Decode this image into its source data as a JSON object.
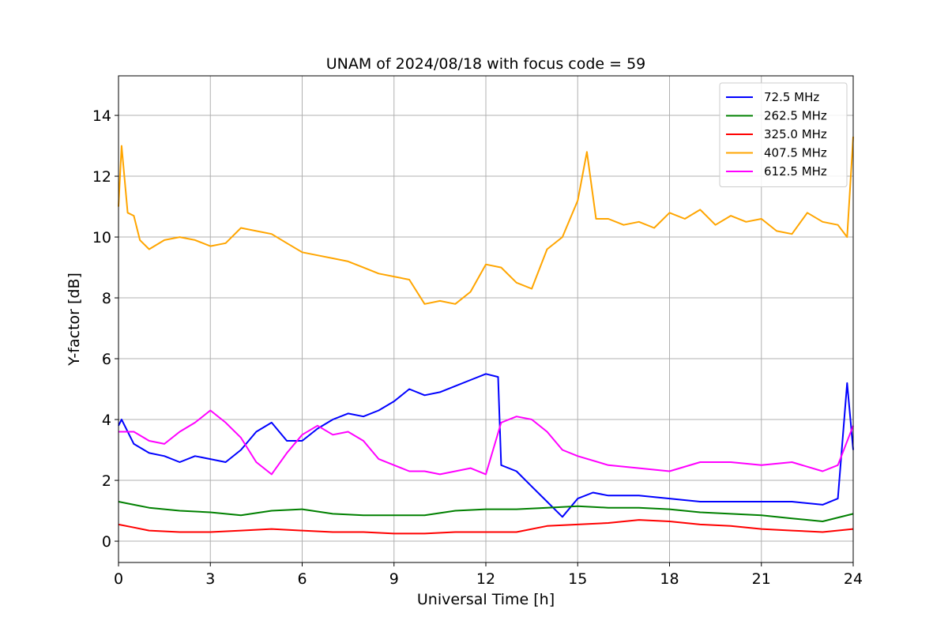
{
  "chart_data": {
    "type": "line",
    "title": "UNAM of 2024/08/18 with focus code = 59",
    "xlabel": "Universal Time [h]",
    "ylabel": "Y-factor [dB]",
    "xlim": [
      0,
      24
    ],
    "ylim": [
      -0.7,
      15.3
    ],
    "xticks": [
      0,
      3,
      6,
      9,
      12,
      15,
      18,
      21,
      24
    ],
    "yticks": [
      0,
      2,
      4,
      6,
      8,
      10,
      12,
      14
    ],
    "grid": true,
    "legend_position": "top-right",
    "series": [
      {
        "name": " 72.5 MHz",
        "color": "#0000ff",
        "x": [
          0,
          0.1,
          0.5,
          1,
          1.5,
          2,
          2.5,
          3,
          3.5,
          4,
          4.5,
          5,
          5.5,
          6,
          6.5,
          7,
          7.5,
          8,
          8.5,
          9,
          9.5,
          10,
          10.5,
          11,
          11.5,
          12,
          12.4,
          12.5,
          13,
          13.5,
          14,
          14.5,
          15,
          15.5,
          16,
          17,
          18,
          19,
          20,
          21,
          22,
          23,
          23.5,
          23.8,
          24
        ],
        "y": [
          3.8,
          4.0,
          3.2,
          2.9,
          2.8,
          2.6,
          2.8,
          2.7,
          2.6,
          3.0,
          3.6,
          3.9,
          3.3,
          3.3,
          3.7,
          4.0,
          4.2,
          4.1,
          4.3,
          4.6,
          5.0,
          4.8,
          4.9,
          5.1,
          5.3,
          5.5,
          5.4,
          2.5,
          2.3,
          1.8,
          1.3,
          0.8,
          1.4,
          1.6,
          1.5,
          1.5,
          1.4,
          1.3,
          1.3,
          1.3,
          1.3,
          1.2,
          1.4,
          5.2,
          3.0
        ]
      },
      {
        "name": " 262.5 MHz",
        "color": "#008000",
        "x": [
          0,
          0.5,
          1,
          2,
          3,
          4,
          5,
          6,
          7,
          8,
          9,
          10,
          11,
          12,
          13,
          14,
          15,
          16,
          17,
          18,
          19,
          20,
          21,
          22,
          23,
          24
        ],
        "y": [
          1.3,
          1.2,
          1.1,
          1.0,
          0.95,
          0.85,
          1.0,
          1.05,
          0.9,
          0.85,
          0.85,
          0.85,
          1.0,
          1.05,
          1.05,
          1.1,
          1.15,
          1.1,
          1.1,
          1.05,
          0.95,
          0.9,
          0.85,
          0.75,
          0.65,
          0.9
        ]
      },
      {
        "name": " 325.0 MHz",
        "color": "#ff0000",
        "x": [
          0,
          0.5,
          1,
          2,
          3,
          4,
          5,
          6,
          7,
          8,
          9,
          10,
          11,
          12,
          13,
          14,
          15,
          16,
          17,
          18,
          19,
          20,
          21,
          22,
          23,
          24
        ],
        "y": [
          0.55,
          0.45,
          0.35,
          0.3,
          0.3,
          0.35,
          0.4,
          0.35,
          0.3,
          0.3,
          0.25,
          0.25,
          0.3,
          0.3,
          0.3,
          0.5,
          0.55,
          0.6,
          0.7,
          0.65,
          0.55,
          0.5,
          0.4,
          0.35,
          0.3,
          0.4
        ]
      },
      {
        "name": " 407.5 MHz",
        "color": "#ffa500",
        "x": [
          0,
          0.1,
          0.3,
          0.5,
          0.7,
          1,
          1.5,
          2,
          2.5,
          3,
          3.5,
          4,
          4.5,
          5,
          5.5,
          6,
          6.5,
          7,
          7.5,
          8,
          8.5,
          9,
          9.5,
          10,
          10.5,
          11,
          11.5,
          12,
          12.5,
          13,
          13.5,
          14,
          14.5,
          15,
          15.3,
          15.6,
          16,
          16.5,
          17,
          17.5,
          18,
          18.5,
          19,
          19.5,
          20,
          20.5,
          21,
          21.5,
          22,
          22.5,
          23,
          23.5,
          23.8,
          24
        ],
        "y": [
          11.0,
          13.0,
          10.8,
          10.7,
          9.9,
          9.6,
          9.9,
          10.0,
          9.9,
          9.7,
          9.8,
          10.3,
          10.2,
          10.1,
          9.8,
          9.5,
          9.4,
          9.3,
          9.2,
          9.0,
          8.8,
          8.7,
          8.6,
          7.8,
          7.9,
          7.8,
          8.2,
          9.1,
          9.0,
          8.5,
          8.3,
          9.6,
          10.0,
          11.2,
          12.8,
          10.6,
          10.6,
          10.4,
          10.5,
          10.3,
          10.8,
          10.6,
          10.9,
          10.4,
          10.7,
          10.5,
          10.6,
          10.2,
          10.1,
          10.8,
          10.5,
          10.4,
          10.0,
          13.3
        ]
      },
      {
        "name": " 612.5 MHz",
        "color": "#ff00ff",
        "x": [
          0,
          0.5,
          1,
          1.5,
          2,
          2.5,
          3,
          3.5,
          4,
          4.5,
          5,
          5.5,
          6,
          6.5,
          7,
          7.5,
          8,
          8.5,
          9,
          9.5,
          10,
          10.5,
          11,
          11.5,
          12,
          12.5,
          13,
          13.5,
          14,
          14.5,
          15,
          16,
          17,
          18,
          19,
          20,
          21,
          22,
          23,
          23.5,
          24
        ],
        "y": [
          3.6,
          3.6,
          3.3,
          3.2,
          3.6,
          3.9,
          4.3,
          3.9,
          3.4,
          2.6,
          2.2,
          2.9,
          3.5,
          3.8,
          3.5,
          3.6,
          3.3,
          2.7,
          2.5,
          2.3,
          2.3,
          2.2,
          2.3,
          2.4,
          2.2,
          3.9,
          4.1,
          4.0,
          3.6,
          3.0,
          2.8,
          2.5,
          2.4,
          2.3,
          2.6,
          2.6,
          2.5,
          2.6,
          2.3,
          2.5,
          3.8
        ]
      }
    ]
  }
}
